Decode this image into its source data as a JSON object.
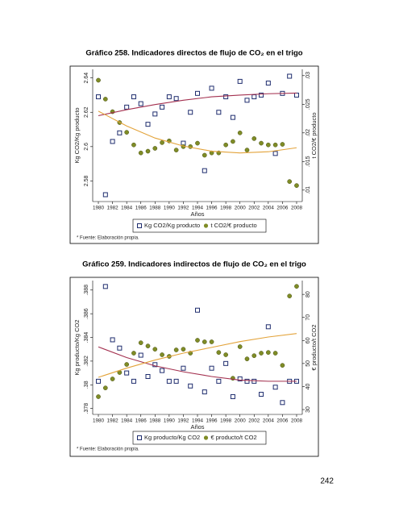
{
  "chart_data": [
    {
      "type": "scatter",
      "title": "Gráfico 258. Indicadores directos de flujo de CO₂ en el trigo",
      "ylabel": "Kg CO2/Kg producto",
      "y2label": "t CO2/€ producto",
      "xlabel": "Años",
      "note": "* Fuente: Elaboración propia.",
      "x": [
        1980,
        1981,
        1982,
        1983,
        1984,
        1985,
        1986,
        1987,
        1988,
        1989,
        1990,
        1991,
        1992,
        1993,
        1994,
        1995,
        1996,
        1997,
        1998,
        1999,
        2000,
        2001,
        2002,
        2003,
        2004,
        2005,
        2006,
        2007,
        2008
      ],
      "xlim": [
        1979.2,
        2008.8
      ],
      "xticks": [
        1980,
        1982,
        1984,
        1986,
        1988,
        1990,
        1992,
        1994,
        1996,
        1998,
        2000,
        2002,
        2004,
        2006,
        2008
      ],
      "ylim": [
        2.568,
        2.645
      ],
      "yticks": [
        2.58,
        2.6,
        2.62,
        2.64
      ],
      "y2lim": [
        0.008,
        0.0311
      ],
      "y2ticks": [
        {
          "value": 0.01,
          "label": ".01"
        },
        {
          "value": 0.015,
          "label": ".015"
        },
        {
          "value": 0.02,
          "label": ".02"
        },
        {
          "value": 0.025,
          "label": ".025"
        },
        {
          "value": 0.03,
          "label": ".03"
        }
      ],
      "series": [
        {
          "name": "Kg CO2/Kg producto",
          "color": "#1f2d6e",
          "marker": "square-open",
          "values": [
            2.629,
            2.572,
            2.603,
            2.608,
            2.623,
            2.629,
            2.625,
            2.613,
            2.619,
            2.623,
            2.629,
            2.628,
            2.602,
            2.62,
            2.631,
            2.586,
            2.634,
            2.62,
            2.629,
            2.617,
            2.638,
            2.627,
            2.629,
            2.63,
            2.637,
            2.596,
            2.631,
            2.641,
            2.63
          ]
        },
        {
          "name": "t CO2/€ producto",
          "color": "#7f8c26",
          "marker": "circle",
          "axis": "y2",
          "values": [
            0.0292,
            0.0259,
            0.0237,
            0.0218,
            0.0201,
            0.0179,
            0.0165,
            0.0168,
            0.0173,
            0.0183,
            0.0186,
            0.017,
            0.0176,
            0.0176,
            0.0182,
            0.0161,
            0.0165,
            0.0165,
            0.0179,
            0.0185,
            0.02,
            0.017,
            0.019,
            0.0182,
            0.0179,
            0.0179,
            0.018,
            0.0115,
            0.0108
          ]
        },
        {
          "type": "line",
          "color": "#a3304f",
          "x": [
            1980,
            1984,
            1988,
            1992,
            1996,
            2000,
            2004,
            2008
          ],
          "values": [
            2.618,
            2.6215,
            2.6245,
            2.627,
            2.629,
            2.63,
            2.6308,
            2.6312
          ]
        },
        {
          "type": "line",
          "color": "#e3a33a",
          "axis": "y2",
          "x": [
            1980,
            1984,
            1988,
            1992,
            1996,
            2000,
            2004,
            2008
          ],
          "values": [
            0.0238,
            0.0212,
            0.0191,
            0.0177,
            0.0168,
            0.0165,
            0.0167,
            0.0174
          ]
        }
      ]
    },
    {
      "type": "scatter",
      "title": "Gráfico 259. Indicadores indirectos de flujo de CO₂ en el trigo",
      "ylabel": "Kg producto/Kg CO2",
      "y2label": "€ producto/t CO2",
      "xlabel": "Años",
      "note": "* Fuente: Elaboración propia.",
      "x": [
        1980,
        1981,
        1982,
        1983,
        1984,
        1985,
        1986,
        1987,
        1988,
        1989,
        1990,
        1991,
        1992,
        1993,
        1994,
        1995,
        1996,
        1997,
        1998,
        1999,
        2000,
        2001,
        2002,
        2003,
        2004,
        2005,
        2006,
        2007,
        2008
      ],
      "xlim": [
        1979.2,
        2008.8
      ],
      "xticks": [
        1980,
        1982,
        1984,
        1986,
        1988,
        1990,
        1992,
        1994,
        1996,
        1998,
        2000,
        2002,
        2004,
        2006,
        2008
      ],
      "ylim": [
        0.3775,
        0.3888
      ],
      "yticks": [
        {
          "value": 0.378,
          "label": ".378"
        },
        {
          "value": 0.38,
          "label": ".38"
        },
        {
          "value": 0.382,
          "label": ".382"
        },
        {
          "value": 0.384,
          "label": ".384"
        },
        {
          "value": 0.386,
          "label": ".386"
        },
        {
          "value": 0.388,
          "label": ".388"
        }
      ],
      "y2lim": [
        27.9,
        86
      ],
      "y2ticks": [
        30,
        40,
        50,
        60,
        70,
        80
      ],
      "series": [
        {
          "name": "Kg producto/Kg CO2",
          "color": "#1f2d6e",
          "marker": "square-open",
          "values": [
            0.3803,
            0.3883,
            0.3838,
            0.3831,
            0.381,
            0.3803,
            0.3825,
            0.3807,
            0.3817,
            0.3812,
            0.3803,
            0.3803,
            0.3814,
            0.3799,
            0.3863,
            0.3794,
            0.3814,
            0.3803,
            0.3818,
            0.379,
            0.3805,
            0.3803,
            0.3803,
            0.3792,
            0.3849,
            0.3798,
            0.3785,
            0.3803,
            0.3803
          ]
        },
        {
          "name": "€ producto/t CO2",
          "color": "#7f8c26",
          "marker": "circle",
          "axis": "y2",
          "values": [
            35.6,
            39.4,
            43.3,
            46.1,
            49.6,
            54.5,
            59,
            57.6,
            56.2,
            53.8,
            53.1,
            55.9,
            56.2,
            54.5,
            60.1,
            59.4,
            59.4,
            54.8,
            53.8,
            43.6,
            57.3,
            52,
            53.4,
            54.5,
            54.8,
            54.5,
            49.2,
            79.3,
            83.5
          ]
        },
        {
          "type": "line",
          "color": "#a3304f",
          "x": [
            1980,
            1984,
            1988,
            1992,
            1996,
            2000,
            2004,
            2008
          ],
          "values": [
            0.3832,
            0.3823,
            0.3816,
            0.3811,
            0.3807,
            0.3804,
            0.3803,
            0.3803
          ]
        },
        {
          "type": "line",
          "color": "#e3a33a",
          "axis": "y2",
          "x": [
            1980,
            1984,
            1988,
            1992,
            1996,
            2000,
            2004,
            2008
          ],
          "values": [
            44,
            48,
            51.5,
            54.5,
            57,
            59.5,
            61.5,
            63
          ]
        }
      ]
    }
  ],
  "page_number": "242"
}
